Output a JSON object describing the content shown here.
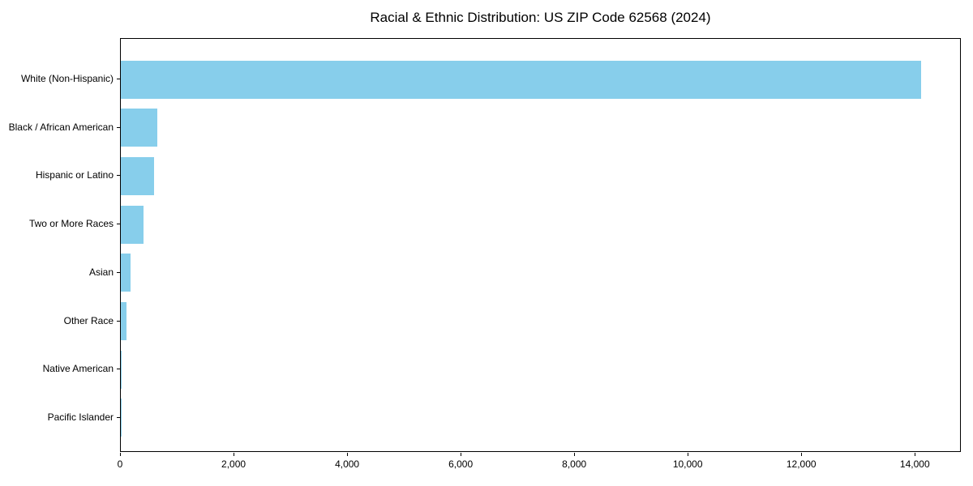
{
  "chart_data": {
    "type": "bar",
    "orientation": "horizontal",
    "title": "Racial & Ethnic Distribution: US ZIP Code 62568 (2024)",
    "categories": [
      "White (Non-Hispanic)",
      "Black / African American",
      "Hispanic or Latino",
      "Two or More Races",
      "Asian",
      "Other Race",
      "Native American",
      "Pacific Islander"
    ],
    "values": [
      14100,
      645,
      590,
      405,
      175,
      100,
      10,
      5
    ],
    "xlabel": "",
    "ylabel": "",
    "xlim": [
      0,
      14810
    ],
    "xticks": [
      0,
      2000,
      4000,
      6000,
      8000,
      10000,
      12000,
      14000
    ],
    "xtick_labels": [
      "0",
      "2,000",
      "4,000",
      "6,000",
      "8,000",
      "10,000",
      "12,000",
      "14,000"
    ],
    "bar_color": "#87CEEB",
    "grid": false,
    "legend": "none",
    "background_color": "#ffffff",
    "spine_color": "#000000"
  }
}
